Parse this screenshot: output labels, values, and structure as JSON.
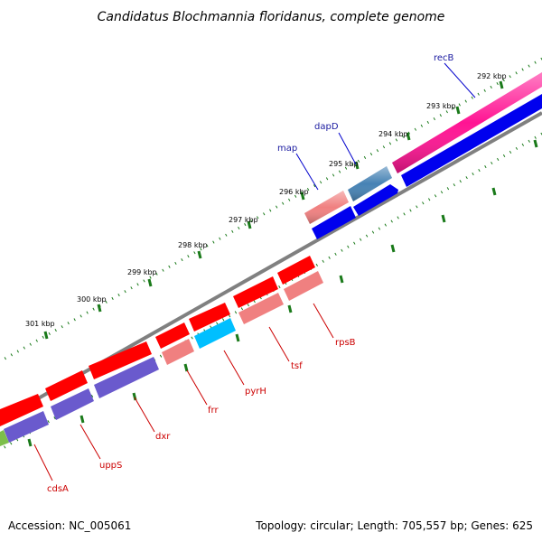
{
  "title": "Candidatus Blochmannia floridanus, complete genome",
  "footer": {
    "accession": "Accession: NC_005061",
    "topology": "Topology: circular; Length: 705,557 bp; Genes: 625"
  },
  "colors": {
    "backbone": "#808080",
    "tick": "#1a7a1a",
    "forward_label": "#1a1aa0",
    "reverse_label": "#cc0000",
    "gene_red": "#ff0000",
    "gene_pink": "#f08080",
    "gene_magenta": "#ff1493",
    "gene_blue": "#0000ee",
    "gene_steelblue": "#4682b4",
    "gene_purple": "#6a5acd",
    "gene_cyan": "#00bfff"
  },
  "ticks": [
    "292 kbp",
    "293 kbp",
    "294 kbp",
    "295 kbp",
    "296 kbp",
    "297 kbp",
    "298 kbp",
    "299 kbp",
    "300 kbp",
    "301 kbp"
  ],
  "gene_labels": {
    "forward": [
      "recB",
      "dapD",
      "map"
    ],
    "reverse": [
      "rpsB",
      "tsf",
      "pyrH",
      "frr",
      "dxr",
      "uppS",
      "cdsA"
    ]
  }
}
